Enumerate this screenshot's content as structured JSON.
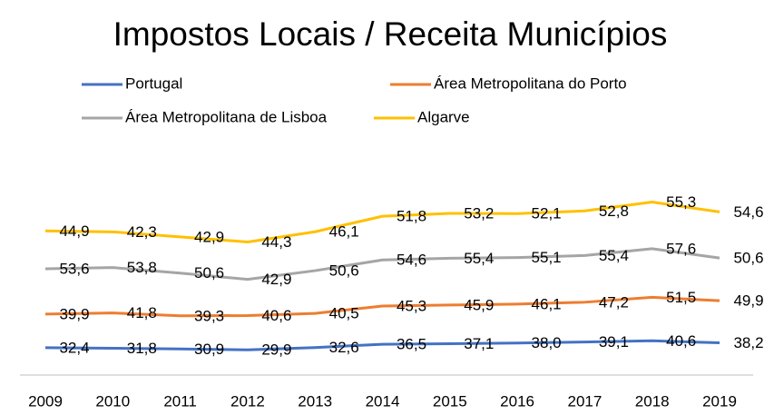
{
  "chart_data": {
    "type": "stacked-line",
    "title": "Impostos Locais / Receita Municípios",
    "categories": [
      "2009",
      "2010",
      "2011",
      "2012",
      "2013",
      "2014",
      "2015",
      "2016",
      "2017",
      "2018",
      "2019"
    ],
    "ylim": [
      0,
      240
    ],
    "series": [
      {
        "name": "Portugal",
        "color": "#4472c4",
        "values": [
          32.4,
          31.8,
          30.9,
          29.9,
          32.6,
          36.5,
          37.1,
          38.0,
          39.1,
          40.6,
          38.2
        ],
        "value_labels": [
          "32,4",
          "31,8",
          "30,9",
          "29,9",
          "32,6",
          "36,5",
          "37,1",
          "38,0",
          "39,1",
          "40,6",
          "38,2"
        ]
      },
      {
        "name": "Área Metropolitana do Porto",
        "color": "#ed7d31",
        "values": [
          39.9,
          41.8,
          39.3,
          40.6,
          40.5,
          45.3,
          45.9,
          46.1,
          47.2,
          51.5,
          49.9
        ],
        "value_labels": [
          "39,9",
          "41,8",
          "39,3",
          "40,6",
          "40,5",
          "45,3",
          "45,9",
          "46,1",
          "47,2",
          "51,5",
          "49,9"
        ]
      },
      {
        "name": "Área Metropolitana de Lisboa",
        "color": "#a5a5a5",
        "values": [
          53.6,
          53.8,
          50.6,
          42.9,
          50.6,
          54.6,
          55.4,
          55.1,
          55.4,
          57.6,
          50.6
        ],
        "value_labels": [
          "53,6",
          "53,8",
          "50,6",
          "42,9",
          "50,6",
          "54,6",
          "55,4",
          "55,1",
          "55,4",
          "57,6",
          "50,6"
        ]
      },
      {
        "name": "Algarve",
        "color": "#ffc000",
        "values": [
          44.9,
          42.3,
          42.9,
          44.3,
          46.1,
          51.8,
          53.2,
          52.1,
          52.8,
          55.3,
          54.6
        ],
        "value_labels": [
          "44,9",
          "42,3",
          "42,9",
          "44,3",
          "46,1",
          "51,8",
          "53,2",
          "52,1",
          "52,8",
          "55,3",
          "54,6"
        ]
      }
    ]
  }
}
